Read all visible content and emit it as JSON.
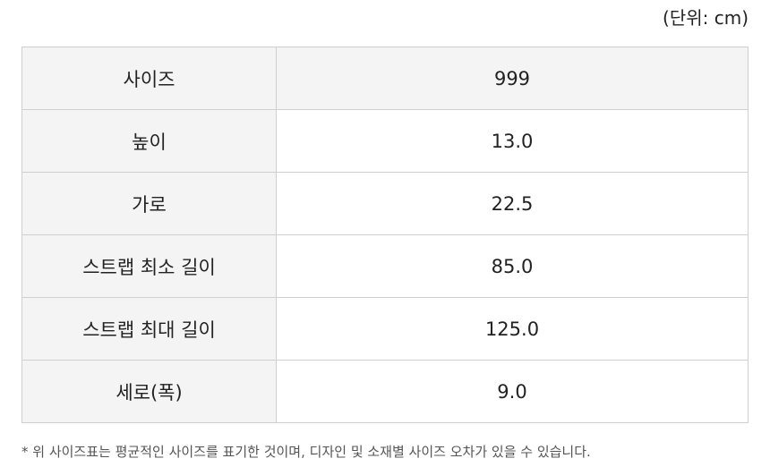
{
  "unit_note": "(단위: cm)",
  "rows": [
    {
      "label": "사이즈",
      "value": "999"
    },
    {
      "label": "높이",
      "value": "13.0"
    },
    {
      "label": "가로",
      "value": "22.5"
    },
    {
      "label": "스트랩 최소 길이",
      "value": "85.0"
    },
    {
      "label": "스트랩 최대 길이",
      "value": "125.0"
    },
    {
      "label": "세로(폭)",
      "value": "9.0"
    }
  ],
  "footnote": "* 위 사이즈표는 평균적인 사이즈를 표기한 것이며, 디자인 및 소재별 사이즈 오차가 있을 수 있습니다."
}
